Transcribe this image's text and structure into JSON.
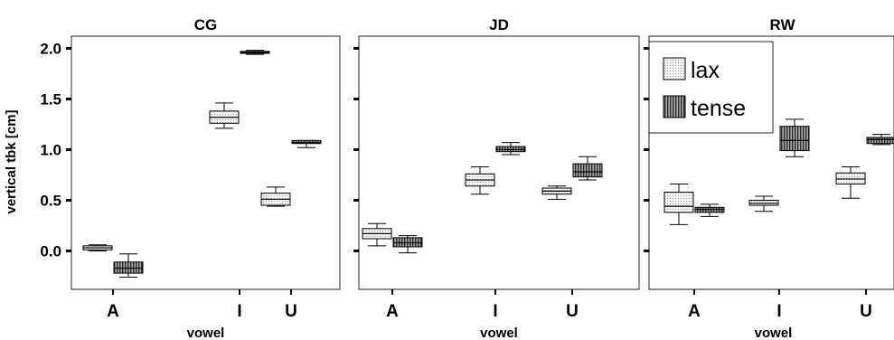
{
  "chart_data": {
    "type": "boxplot",
    "ylabel": "vertical tbk [cm]",
    "xlabel": "vowel",
    "ylim": [
      -0.38,
      2.12
    ],
    "yticks": [
      "0.0",
      "0.5",
      "1.0",
      "1.5",
      "2.0"
    ],
    "ytick_values": [
      0.0,
      0.5,
      1.0,
      1.5,
      2.0
    ],
    "categories": [
      "A",
      "I",
      "U"
    ],
    "legend": {
      "position": "top-left of RW panel",
      "entries": [
        "lax",
        "tense"
      ]
    },
    "series_fills": {
      "lax": "dotted-light",
      "tense": "vertical-striped-dark"
    },
    "panels": [
      {
        "title": "CG",
        "boxes": [
          {
            "category": "A",
            "series": "lax",
            "min": 0.0,
            "q1": 0.01,
            "median": 0.03,
            "q3": 0.05,
            "max": 0.06
          },
          {
            "category": "A",
            "series": "tense",
            "min": -0.26,
            "q1": -0.22,
            "median": -0.17,
            "q3": -0.11,
            "max": -0.03
          },
          {
            "category": "I",
            "series": "lax",
            "min": 1.21,
            "q1": 1.26,
            "median": 1.32,
            "q3": 1.38,
            "max": 1.46
          },
          {
            "category": "I",
            "series": "tense",
            "min": 1.94,
            "q1": 1.95,
            "median": 1.96,
            "q3": 1.97,
            "max": 1.98
          },
          {
            "category": "U",
            "series": "lax",
            "min": 0.44,
            "q1": 0.45,
            "median": 0.51,
            "q3": 0.57,
            "max": 0.63
          },
          {
            "category": "U",
            "series": "tense",
            "min": 1.02,
            "q1": 1.06,
            "median": 1.07,
            "q3": 1.09,
            "max": 1.09
          }
        ]
      },
      {
        "title": "JD",
        "boxes": [
          {
            "category": "A",
            "series": "lax",
            "min": 0.05,
            "q1": 0.12,
            "median": 0.17,
            "q3": 0.22,
            "max": 0.27
          },
          {
            "category": "A",
            "series": "tense",
            "min": -0.02,
            "q1": 0.04,
            "median": 0.08,
            "q3": 0.13,
            "max": 0.15
          },
          {
            "category": "I",
            "series": "lax",
            "min": 0.56,
            "q1": 0.64,
            "median": 0.7,
            "q3": 0.76,
            "max": 0.83
          },
          {
            "category": "I",
            "series": "tense",
            "min": 0.95,
            "q1": 0.98,
            "median": 1.0,
            "q3": 1.03,
            "max": 1.07
          },
          {
            "category": "U",
            "series": "lax",
            "min": 0.51,
            "q1": 0.56,
            "median": 0.59,
            "q3": 0.62,
            "max": 0.64
          },
          {
            "category": "U",
            "series": "tense",
            "min": 0.7,
            "q1": 0.73,
            "median": 0.78,
            "q3": 0.86,
            "max": 0.93
          }
        ]
      },
      {
        "title": "RW",
        "boxes": [
          {
            "category": "A",
            "series": "lax",
            "min": 0.26,
            "q1": 0.38,
            "median": 0.44,
            "q3": 0.58,
            "max": 0.66
          },
          {
            "category": "A",
            "series": "tense",
            "min": 0.34,
            "q1": 0.38,
            "median": 0.41,
            "q3": 0.43,
            "max": 0.46
          },
          {
            "category": "I",
            "series": "lax",
            "min": 0.39,
            "q1": 0.45,
            "median": 0.47,
            "q3": 0.5,
            "max": 0.54
          },
          {
            "category": "I",
            "series": "tense",
            "min": 0.93,
            "q1": 0.99,
            "median": 1.09,
            "q3": 1.23,
            "max": 1.3
          },
          {
            "category": "U",
            "series": "lax",
            "min": 0.52,
            "q1": 0.66,
            "median": 0.71,
            "q3": 0.77,
            "max": 0.83
          },
          {
            "category": "U",
            "series": "tense",
            "min": 1.05,
            "q1": 1.06,
            "median": 1.1,
            "q3": 1.12,
            "max": 1.15
          }
        ]
      }
    ]
  }
}
